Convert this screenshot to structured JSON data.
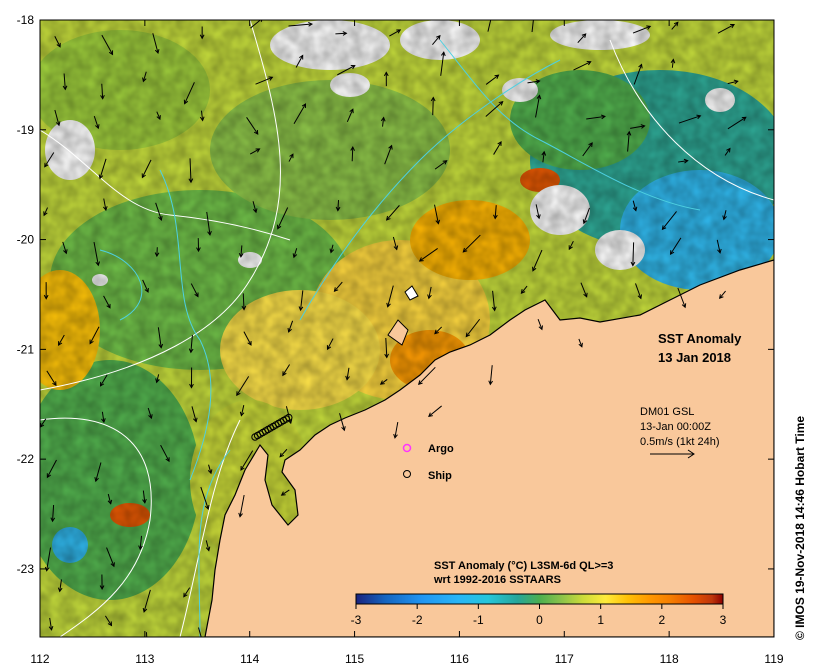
{
  "map": {
    "x_ticks": [
      "112",
      "113",
      "114",
      "115",
      "116",
      "117",
      "118",
      "119"
    ],
    "y_ticks": [
      "-18",
      "-19",
      "-20",
      "-21",
      "-22",
      "-23"
    ],
    "title_line1": "SST Anomaly",
    "title_line2": "13 Jan 2018",
    "current_legend": {
      "line1": "DM01 GSL",
      "line2": "13-Jan 00:00Z",
      "line3": "0.5m/s (1kt 24h)"
    },
    "markers": [
      {
        "label": "Argo",
        "color": "#ff33ff"
      },
      {
        "label": "Ship",
        "color": "#000000"
      }
    ],
    "colorbar": {
      "title_line1": "SST Anomaly (°C) L3SM-6d QL>=3",
      "title_line2": "wrt 1992-2016 SSTAARS",
      "ticks": [
        "-3",
        "-2",
        "-1",
        "0",
        "1",
        "2",
        "3"
      ],
      "colors": [
        "#1a237e",
        "#1565c0",
        "#2196f3",
        "#29b6f6",
        "#26c6da",
        "#26a69a",
        "#4caf50",
        "#8bc34a",
        "#cddc39",
        "#ffeb3b",
        "#ffc107",
        "#ff9800",
        "#f57c00",
        "#e65100",
        "#bf360c",
        "#8b0000"
      ]
    },
    "credit": "© IMOS 19-Nov-2018 14:46 Hobart Time",
    "land_color": "#f9c89b",
    "sea_colors": [
      "#8bc34a",
      "#cddc39",
      "#ffeb3b",
      "#4caf50"
    ]
  }
}
